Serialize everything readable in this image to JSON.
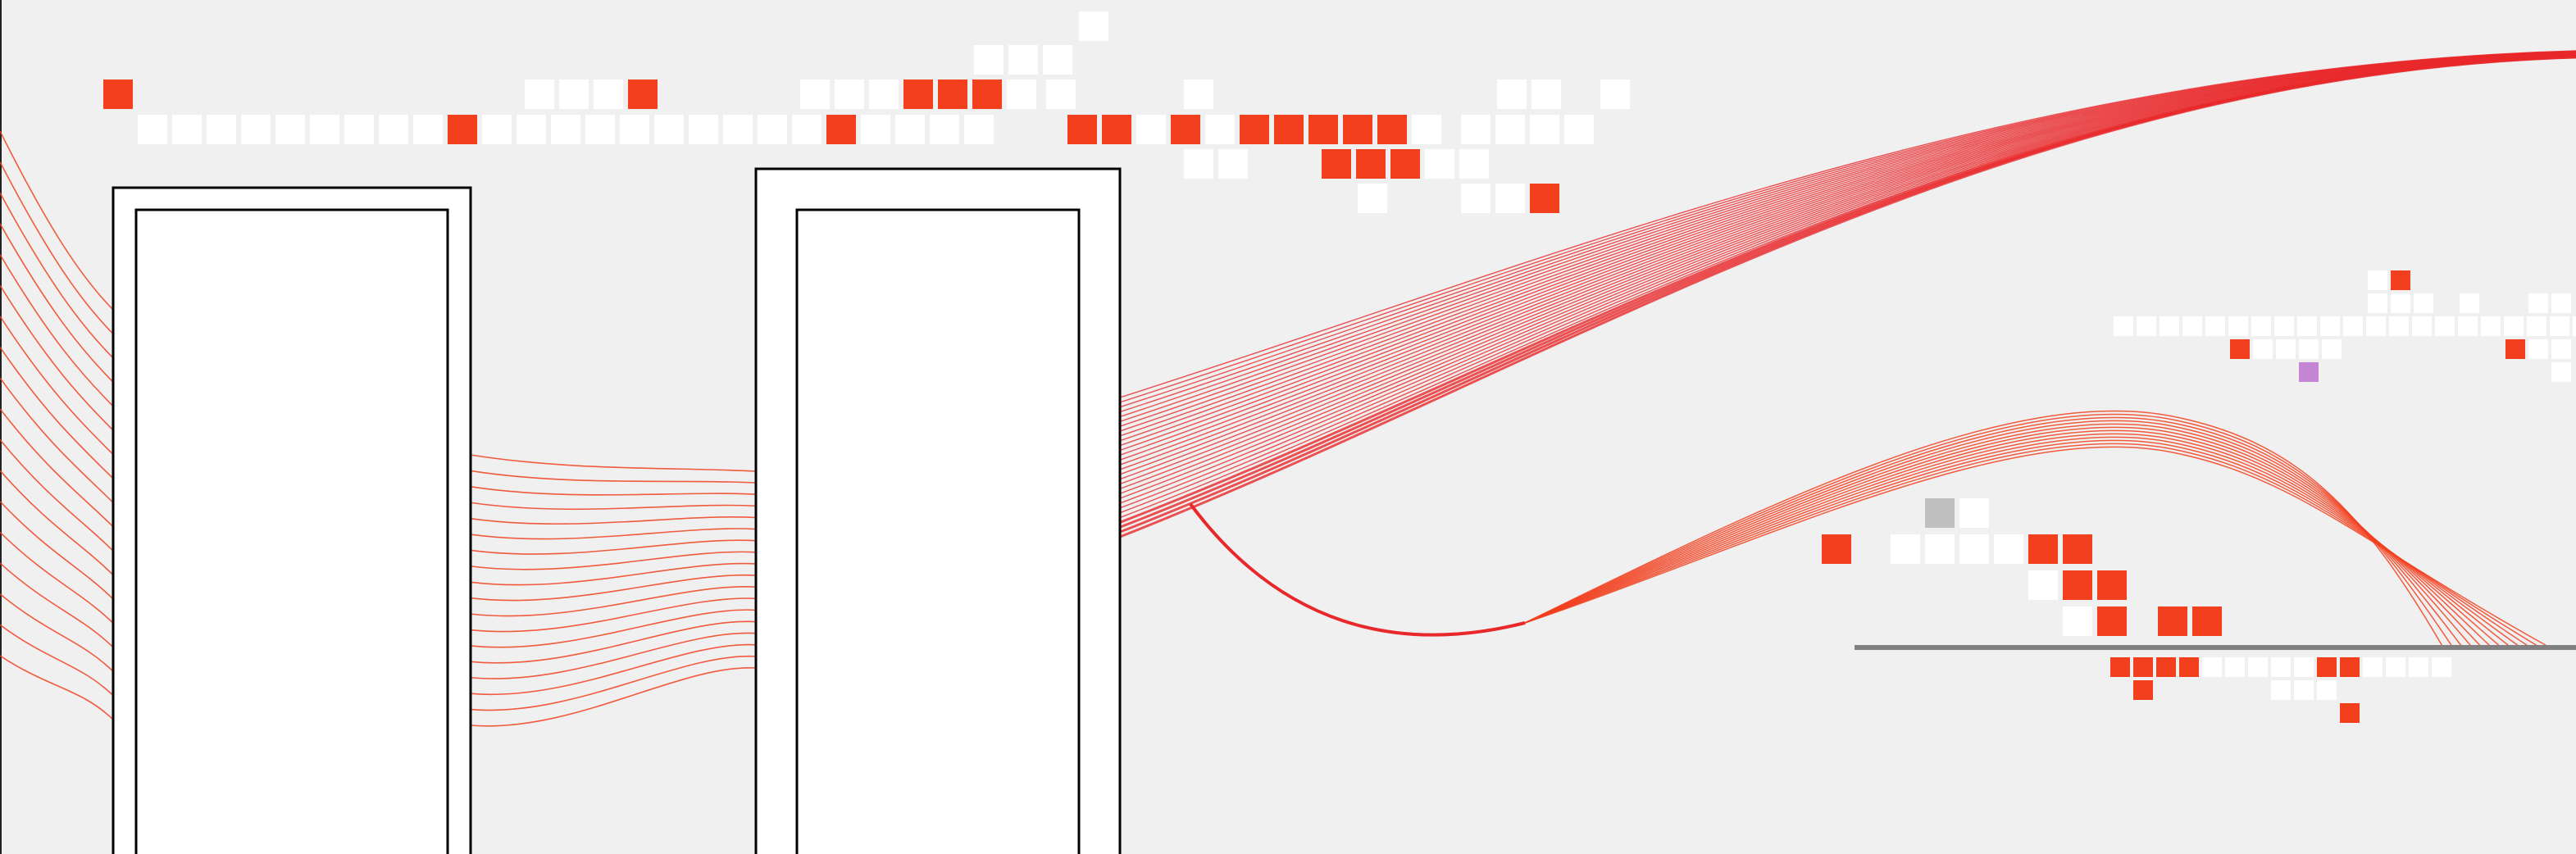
{
  "colors": {
    "background": "#f0f0f0",
    "accent": "#f2401f",
    "accent_dark": "#e8282a",
    "tile_light": "#ffffff",
    "tile_gray": "#c0c0c0",
    "tile_purple": "#c486d4",
    "frame_stroke": "#000000",
    "frame_fill": "#ffffff",
    "baseline": "#808080"
  }
}
